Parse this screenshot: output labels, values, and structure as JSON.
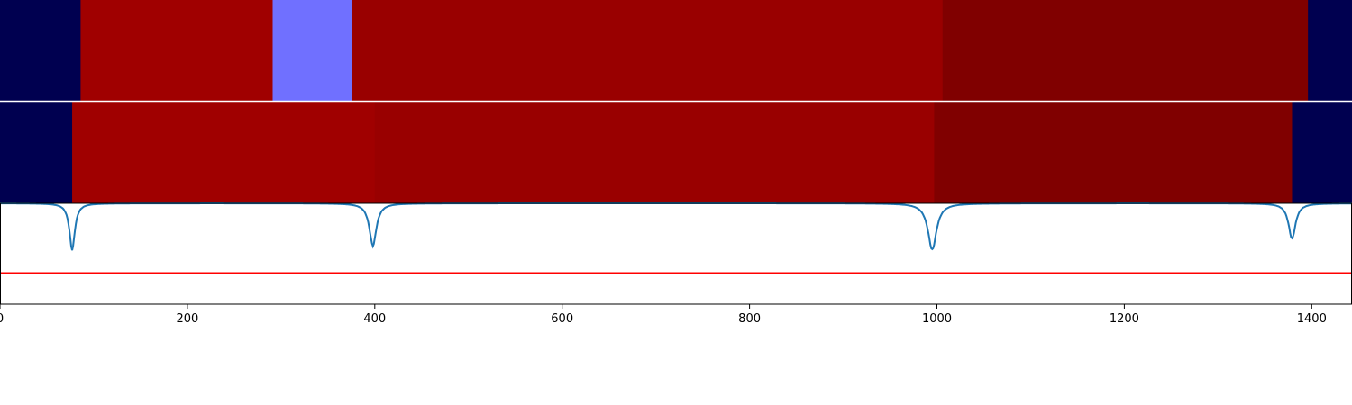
{
  "chart_data": {
    "type": "heatmap",
    "title": "",
    "xlabel": "",
    "ylabel": "",
    "xlim": [
      0,
      1443
    ],
    "grid": false,
    "legend": "none",
    "x_ticks": [
      {
        "value": 0,
        "label": "0"
      },
      {
        "value": 200,
        "label": "200"
      },
      {
        "value": 400,
        "label": "400"
      },
      {
        "value": 600,
        "label": "600"
      },
      {
        "value": 800,
        "label": "800"
      },
      {
        "value": 1000,
        "label": "1000"
      },
      {
        "value": 1200,
        "label": "1200"
      },
      {
        "value": 1400,
        "label": "1400"
      }
    ],
    "segment_rows": [
      {
        "segments": [
          {
            "start": 0,
            "end": 86,
            "color": "#000050"
          },
          {
            "start": 86,
            "end": 291,
            "color": "#a00000"
          },
          {
            "start": 291,
            "end": 376,
            "color": "#7070ff"
          },
          {
            "start": 376,
            "end": 1006,
            "color": "#990000"
          },
          {
            "start": 1006,
            "end": 1396,
            "color": "#800000"
          },
          {
            "start": 1396,
            "end": 1443,
            "color": "#000050"
          }
        ]
      },
      {
        "segments": [
          {
            "start": 0,
            "end": 77,
            "color": "#000050"
          },
          {
            "start": 77,
            "end": 400,
            "color": "#a00000"
          },
          {
            "start": 400,
            "end": 997,
            "color": "#990000"
          },
          {
            "start": 997,
            "end": 1379,
            "color": "#800000"
          },
          {
            "start": 1379,
            "end": 1443,
            "color": "#000050"
          }
        ]
      }
    ],
    "line_panel": {
      "ylim": [
        0,
        1
      ],
      "signal": {
        "color": "#1f77b4",
        "baseline": 1.0,
        "dips": [
          {
            "center": 77,
            "depth": 0.46,
            "width": 3.5
          },
          {
            "center": 398,
            "depth": 0.42,
            "width": 4.5
          },
          {
            "center": 995,
            "depth": 0.46,
            "width": 5.5
          },
          {
            "center": 1379,
            "depth": 0.35,
            "width": 4.5
          }
        ]
      },
      "threshold": {
        "value": 0.31,
        "color": "#ff0000"
      }
    }
  }
}
